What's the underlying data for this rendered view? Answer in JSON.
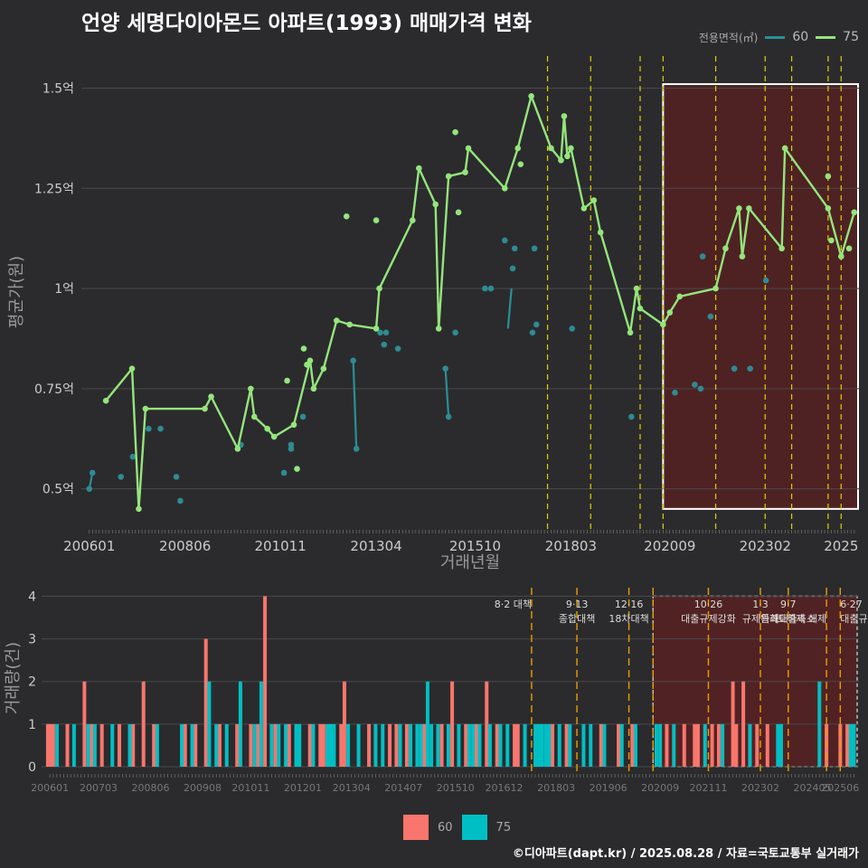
{
  "title": "언양 세명다이아몬드 아파트(1993) 매매가격 변화",
  "footer": "©디아파트(dapt.kr) / 2025.08.28 / 자료=국토교통부 실거래가",
  "colors": {
    "bg": "#2b2b2d",
    "s60_line": "#2a8f96",
    "s60_point": "#2e8b94",
    "s75": "#95e57c",
    "bar60": "#f8766d",
    "bar75": "#00bfc4",
    "policy": "#e0d000",
    "policy_bottom": "#e8a000",
    "shade": "#6b1c1c",
    "grid": "#4a4a4c",
    "text": "#cccccc"
  },
  "legend_top": {
    "title": "전용면적(㎡)",
    "items": [
      {
        "label": "60"
      },
      {
        "label": "75"
      }
    ]
  },
  "legend_bottom": {
    "items": [
      {
        "label": "60"
      },
      {
        "label": "75"
      }
    ]
  },
  "chart_data": [
    {
      "type": "line",
      "xlabel": "거래년월",
      "ylabel": "평균가(원)",
      "x_unit": "decimal year",
      "xlim": [
        2005.8,
        2025.45
      ],
      "ylim": [
        0.4,
        1.58
      ],
      "yticks": [
        0.5,
        0.75,
        1,
        1.25,
        1.5
      ],
      "ytick_labels": [
        "0.5억",
        "0.75억",
        "1억",
        "1.25억",
        "1.5억"
      ],
      "xticks": [
        2006.0,
        2008.42,
        2010.83,
        2013.25,
        2015.75,
        2018.17,
        2020.67,
        2023.08,
        2025.0
      ],
      "xtick_labels": [
        "200601",
        "200806",
        "201011",
        "201304",
        "201510",
        "201803",
        "202009",
        "202302",
        "2025"
      ],
      "policy_lines": [
        2017.58,
        2018.67,
        2019.92,
        2020.5,
        2021.83,
        2023.08,
        2023.75,
        2024.67,
        2025.0
      ],
      "shade_range": [
        2020.5,
        2025.45
      ],
      "shade_y": [
        0.45,
        1.51
      ],
      "series": [
        {
          "name": "60",
          "line": [
            [
              2006.0,
              0.5
            ],
            [
              2006.08,
              0.54
            ]
          ],
          "line2": [
            [
              2012.67,
              0.82
            ],
            [
              2012.75,
              0.6
            ]
          ],
          "line3": [
            [
              2015.0,
              0.8
            ],
            [
              2015.08,
              0.68
            ]
          ],
          "line4": [
            [
              2016.58,
              0.9
            ],
            [
              2016.67,
              1.0
            ]
          ],
          "points": [
            [
              2006.0,
              0.5
            ],
            [
              2006.08,
              0.54
            ],
            [
              2006.8,
              0.53
            ],
            [
              2007.1,
              0.58
            ],
            [
              2007.5,
              0.65
            ],
            [
              2007.8,
              0.65
            ],
            [
              2008.2,
              0.53
            ],
            [
              2008.3,
              0.47
            ],
            [
              2009.83,
              0.61
            ],
            [
              2010.92,
              0.54
            ],
            [
              2011.1,
              0.61
            ],
            [
              2011.1,
              0.6
            ],
            [
              2011.4,
              0.68
            ],
            [
              2012.67,
              0.82
            ],
            [
              2012.75,
              0.6
            ],
            [
              2013.35,
              0.89
            ],
            [
              2013.45,
              0.86
            ],
            [
              2013.5,
              0.89
            ],
            [
              2013.8,
              0.85
            ],
            [
              2015.0,
              0.8
            ],
            [
              2015.08,
              0.68
            ],
            [
              2015.25,
              0.89
            ],
            [
              2016.0,
              1.0
            ],
            [
              2016.15,
              1.0
            ],
            [
              2016.5,
              1.12
            ],
            [
              2016.7,
              1.05
            ],
            [
              2016.75,
              1.1
            ],
            [
              2017.25,
              1.1
            ],
            [
              2017.2,
              0.89
            ],
            [
              2017.3,
              0.91
            ],
            [
              2018.2,
              0.9
            ],
            [
              2019.7,
              0.68
            ],
            [
              2020.8,
              0.74
            ],
            [
              2021.3,
              0.76
            ],
            [
              2021.45,
              0.75
            ],
            [
              2021.5,
              1.08
            ],
            [
              2021.7,
              0.93
            ],
            [
              2022.3,
              0.8
            ],
            [
              2022.7,
              0.8
            ],
            [
              2023.1,
              1.02
            ]
          ]
        },
        {
          "name": "75",
          "line": [
            [
              2006.42,
              0.72
            ],
            [
              2007.08,
              0.8
            ],
            [
              2007.25,
              0.45
            ],
            [
              2007.42,
              0.7
            ],
            [
              2008.92,
              0.7
            ],
            [
              2009.08,
              0.73
            ],
            [
              2009.75,
              0.6
            ],
            [
              2010.08,
              0.75
            ],
            [
              2010.17,
              0.68
            ],
            [
              2010.5,
              0.65
            ],
            [
              2010.67,
              0.63
            ],
            [
              2011.17,
              0.66
            ],
            [
              2011.58,
              0.82
            ],
            [
              2011.67,
              0.75
            ],
            [
              2011.92,
              0.8
            ],
            [
              2012.25,
              0.92
            ],
            [
              2012.58,
              0.91
            ],
            [
              2013.25,
              0.9
            ],
            [
              2013.33,
              1.0
            ],
            [
              2014.17,
              1.17
            ],
            [
              2014.33,
              1.3
            ],
            [
              2014.75,
              1.21
            ],
            [
              2014.83,
              0.9
            ],
            [
              2015.08,
              1.28
            ],
            [
              2015.5,
              1.29
            ],
            [
              2015.58,
              1.35
            ],
            [
              2016.5,
              1.25
            ],
            [
              2016.83,
              1.35
            ],
            [
              2017.17,
              1.48
            ],
            [
              2017.67,
              1.35
            ],
            [
              2017.92,
              1.32
            ],
            [
              2018.0,
              1.43
            ],
            [
              2018.08,
              1.33
            ],
            [
              2018.17,
              1.35
            ],
            [
              2018.5,
              1.2
            ],
            [
              2018.75,
              1.22
            ],
            [
              2018.92,
              1.14
            ],
            [
              2019.67,
              0.89
            ],
            [
              2019.83,
              1.0
            ],
            [
              2019.92,
              0.95
            ],
            [
              2020.5,
              0.91
            ],
            [
              2020.67,
              0.94
            ],
            [
              2020.92,
              0.98
            ],
            [
              2021.83,
              1.0
            ],
            [
              2022.08,
              1.1
            ],
            [
              2022.42,
              1.2
            ],
            [
              2022.5,
              1.08
            ],
            [
              2022.67,
              1.2
            ],
            [
              2023.5,
              1.1
            ],
            [
              2023.58,
              1.35
            ],
            [
              2024.67,
              1.2
            ],
            [
              2025.0,
              1.08
            ],
            [
              2025.33,
              1.19
            ]
          ],
          "points": [
            [
              2012.5,
              1.18
            ],
            [
              2013.25,
              1.17
            ],
            [
              2015.25,
              1.39
            ],
            [
              2015.33,
              1.19
            ],
            [
              2011.0,
              0.77
            ],
            [
              2011.42,
              0.85
            ],
            [
              2011.25,
              0.55
            ],
            [
              2011.5,
              0.81
            ],
            [
              2024.67,
              1.28
            ],
            [
              2024.75,
              1.12
            ],
            [
              2025.2,
              1.1
            ],
            [
              2016.9,
              1.31
            ]
          ]
        }
      ]
    },
    {
      "type": "bar",
      "ylabel": "거래량(건)",
      "ylim": [
        0,
        4.2
      ],
      "yticks": [
        0,
        1,
        2,
        3,
        4
      ],
      "xlim": [
        2005.8,
        2025.45
      ],
      "xticks": [
        2006.0,
        2007.17,
        2008.42,
        2009.67,
        2010.83,
        2012.08,
        2013.25,
        2014.5,
        2015.75,
        2016.92,
        2018.17,
        2019.42,
        2020.67,
        2021.83,
        2023.08,
        2024.33,
        2025.0
      ],
      "xtick_labels": [
        "200601",
        "200703",
        "200806",
        "200908",
        "201011",
        "201201",
        "201304",
        "201407",
        "201510",
        "201612",
        "201803",
        "201906",
        "202009",
        "202111",
        "202302",
        "202405",
        "202506"
      ],
      "policy_lines": [
        2017.58,
        2018.67,
        2019.92,
        2020.5,
        2021.83,
        2023.08,
        2023.75,
        2024.67,
        2025.0
      ],
      "policy_labels": [
        {
          "x": 2017.58,
          "lines": [
            "8·2 대책"
          ],
          "align": "end"
        },
        {
          "x": 2018.67,
          "lines": [
            "9·13",
            "종합대책"
          ],
          "align": "middle"
        },
        {
          "x": 2019.92,
          "lines": [
            "12·16",
            "18차대책"
          ],
          "align": "middle"
        },
        {
          "x": 2021.83,
          "lines": [
            "10·26",
            "대출규제강화"
          ],
          "align": "middle"
        },
        {
          "x": 2023.08,
          "lines": [
            "1·3",
            "규제완화"
          ],
          "align": "middle"
        },
        {
          "x": 2023.75,
          "lines": [
            "9·7",
            "특례대출축소"
          ],
          "align": "middle"
        },
        {
          "x": 2024.67,
          "lines": [
            "",
            "토허제 해제"
          ],
          "align": "end"
        },
        {
          "x": 2025.0,
          "lines": [
            "6·27",
            "대출규"
          ],
          "align": "start"
        }
      ],
      "shade_range": [
        2020.5,
        2025.45
      ],
      "bars60": [
        [
          2005.95,
          1
        ],
        [
          2006.0,
          1
        ],
        [
          2006.08,
          1
        ],
        [
          2006.42,
          1
        ],
        [
          2006.83,
          2
        ],
        [
          2007.0,
          1
        ],
        [
          2007.25,
          1
        ],
        [
          2007.67,
          1
        ],
        [
          2008.0,
          1
        ],
        [
          2008.25,
          2
        ],
        [
          2008.5,
          1
        ],
        [
          2009.25,
          1
        ],
        [
          2009.5,
          1
        ],
        [
          2009.75,
          3
        ],
        [
          2010.08,
          1
        ],
        [
          2010.5,
          1
        ],
        [
          2010.83,
          1
        ],
        [
          2011.0,
          1
        ],
        [
          2011.17,
          4
        ],
        [
          2011.42,
          1
        ],
        [
          2011.75,
          1
        ],
        [
          2012.25,
          1
        ],
        [
          2012.5,
          1
        ],
        [
          2012.58,
          1
        ],
        [
          2013.0,
          1
        ],
        [
          2013.08,
          2
        ],
        [
          2013.67,
          1
        ],
        [
          2014.17,
          1
        ],
        [
          2014.33,
          1
        ],
        [
          2014.58,
          1
        ],
        [
          2015.0,
          1
        ],
        [
          2015.42,
          1
        ],
        [
          2015.67,
          2
        ],
        [
          2016.0,
          1
        ],
        [
          2016.25,
          1
        ],
        [
          2016.5,
          2
        ],
        [
          2016.75,
          1
        ],
        [
          2017.17,
          1
        ],
        [
          2017.25,
          1
        ],
        [
          2018.08,
          1
        ],
        [
          2018.42,
          1
        ],
        [
          2019.25,
          1
        ],
        [
          2019.67,
          1
        ],
        [
          2020.0,
          1
        ],
        [
          2020.83,
          1
        ],
        [
          2021.25,
          1
        ],
        [
          2021.5,
          1
        ],
        [
          2021.58,
          1
        ],
        [
          2021.92,
          1
        ],
        [
          2022.08,
          1
        ],
        [
          2022.42,
          2
        ],
        [
          2022.5,
          1
        ],
        [
          2022.67,
          2
        ],
        [
          2023.0,
          1
        ],
        [
          2023.25,
          1
        ],
        [
          2024.67,
          1
        ],
        [
          2025.0,
          1
        ],
        [
          2025.17,
          1
        ]
      ],
      "bars75": [
        [
          2006.17,
          1
        ],
        [
          2006.58,
          1
        ],
        [
          2006.92,
          1
        ],
        [
          2007.08,
          1
        ],
        [
          2007.5,
          1
        ],
        [
          2007.92,
          1
        ],
        [
          2008.58,
          1
        ],
        [
          2009.17,
          1
        ],
        [
          2009.42,
          1
        ],
        [
          2009.83,
          2
        ],
        [
          2010.0,
          1
        ],
        [
          2010.25,
          1
        ],
        [
          2010.58,
          2
        ],
        [
          2010.92,
          1
        ],
        [
          2011.08,
          2
        ],
        [
          2011.33,
          1
        ],
        [
          2011.5,
          1
        ],
        [
          2011.67,
          1
        ],
        [
          2011.92,
          1
        ],
        [
          2012.0,
          1
        ],
        [
          2012.33,
          1
        ],
        [
          2012.67,
          1
        ],
        [
          2012.75,
          1
        ],
        [
          2012.83,
          1
        ],
        [
          2013.17,
          1
        ],
        [
          2013.42,
          1
        ],
        [
          2013.83,
          1
        ],
        [
          2014.0,
          1
        ],
        [
          2014.42,
          1
        ],
        [
          2014.67,
          1
        ],
        [
          2014.83,
          1
        ],
        [
          2014.92,
          1
        ],
        [
          2015.08,
          2
        ],
        [
          2015.17,
          1
        ],
        [
          2015.33,
          1
        ],
        [
          2015.58,
          1
        ],
        [
          2015.83,
          1
        ],
        [
          2016.08,
          1
        ],
        [
          2016.17,
          1
        ],
        [
          2016.33,
          1
        ],
        [
          2016.58,
          1
        ],
        [
          2016.83,
          1
        ],
        [
          2017.0,
          1
        ],
        [
          2017.42,
          1
        ],
        [
          2017.67,
          1
        ],
        [
          2017.75,
          1
        ],
        [
          2017.83,
          1
        ],
        [
          2017.92,
          1
        ],
        [
          2018.0,
          1
        ],
        [
          2018.25,
          1
        ],
        [
          2018.5,
          1
        ],
        [
          2018.83,
          1
        ],
        [
          2019.0,
          1
        ],
        [
          2019.33,
          1
        ],
        [
          2019.75,
          1
        ],
        [
          2020.08,
          1
        ],
        [
          2020.58,
          1
        ],
        [
          2020.67,
          1
        ],
        [
          2021.0,
          1
        ],
        [
          2021.75,
          1
        ],
        [
          2022.17,
          1
        ],
        [
          2022.83,
          1
        ],
        [
          2023.5,
          1
        ],
        [
          2023.58,
          1
        ],
        [
          2024.5,
          2
        ],
        [
          2025.25,
          1
        ],
        [
          2025.33,
          1
        ]
      ]
    }
  ]
}
